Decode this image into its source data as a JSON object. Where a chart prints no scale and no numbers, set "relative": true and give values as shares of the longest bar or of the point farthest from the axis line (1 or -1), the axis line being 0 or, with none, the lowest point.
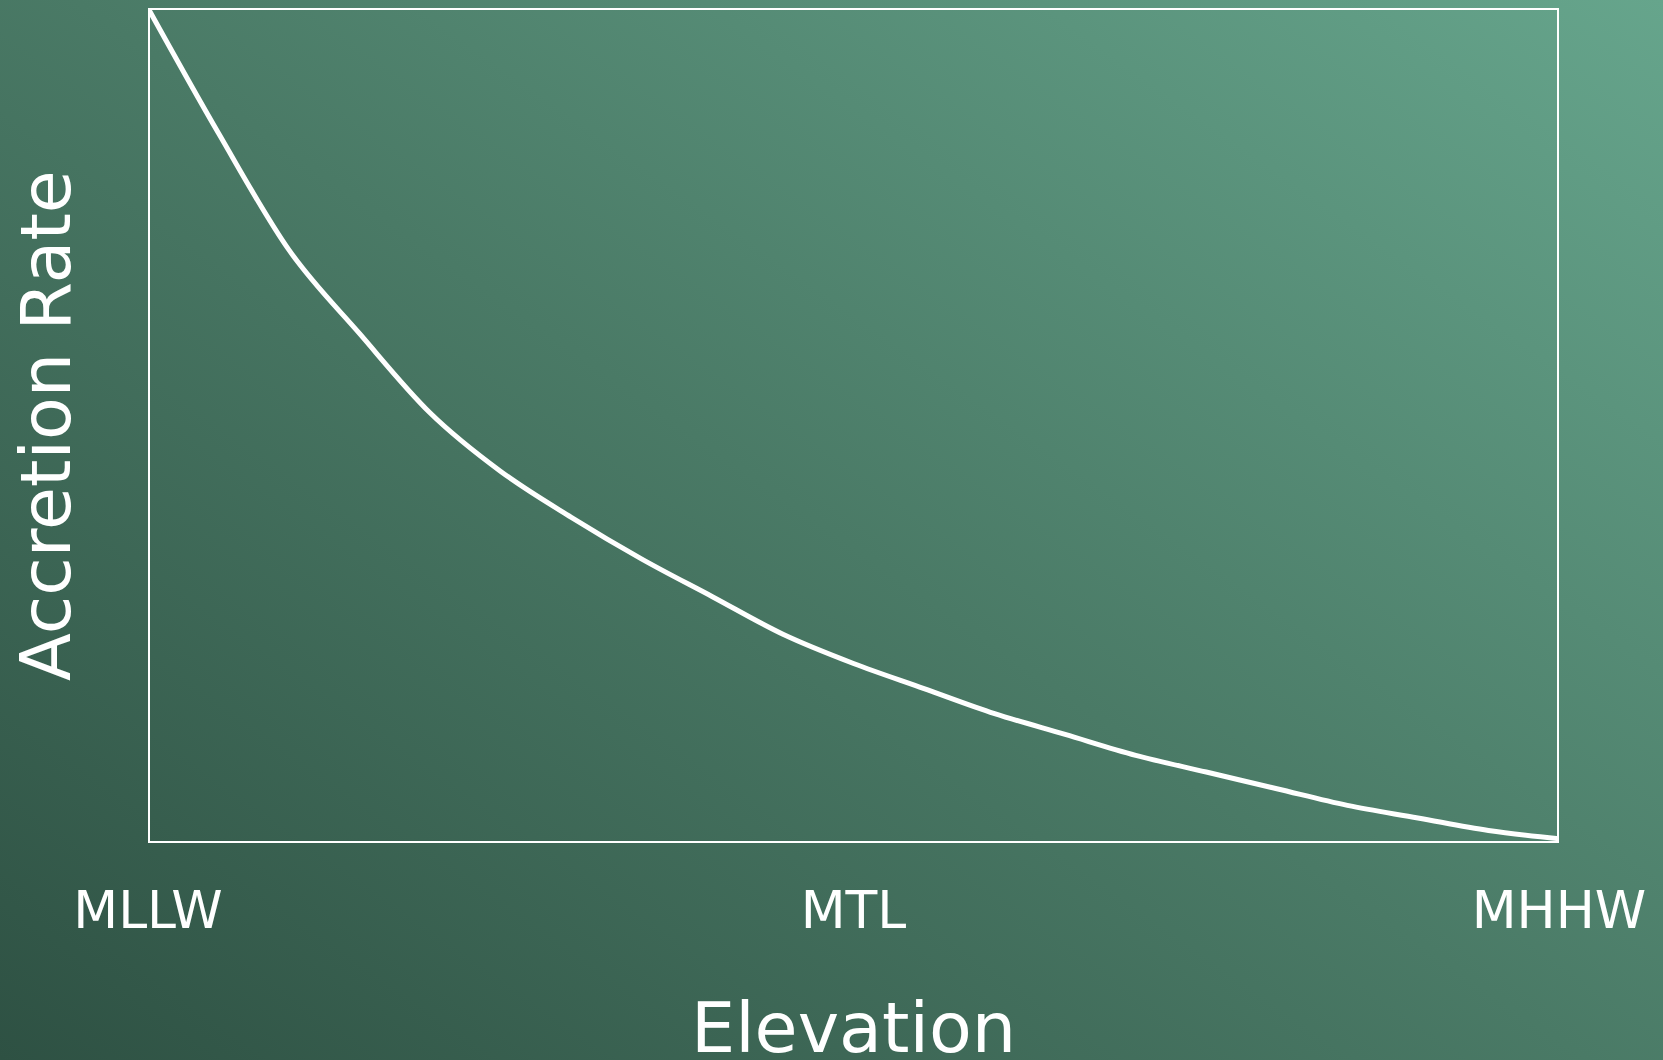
{
  "chart_data": {
    "type": "line",
    "relative": true,
    "xlabel": "Elevation",
    "ylabel": "Accretion Rate",
    "categories": [
      "MLLW",
      null,
      null,
      null,
      null,
      null,
      null,
      null,
      null,
      null,
      "MTL",
      null,
      null,
      null,
      null,
      null,
      null,
      null,
      null,
      null,
      "MHHW"
    ],
    "series": [
      {
        "color": "#ffffff",
        "values": [
          1,
          0.85,
          0.71,
          0.61,
          0.515,
          0.445,
          0.39,
          0.34,
          0.295,
          0.25,
          0.215,
          0.185,
          0.155,
          0.13,
          0.105,
          0.085,
          0.065,
          0.045,
          0.03,
          0.015,
          0.005
        ]
      }
    ],
    "grid": false,
    "legend": false,
    "marker": "none",
    "line_style": "solid"
  }
}
